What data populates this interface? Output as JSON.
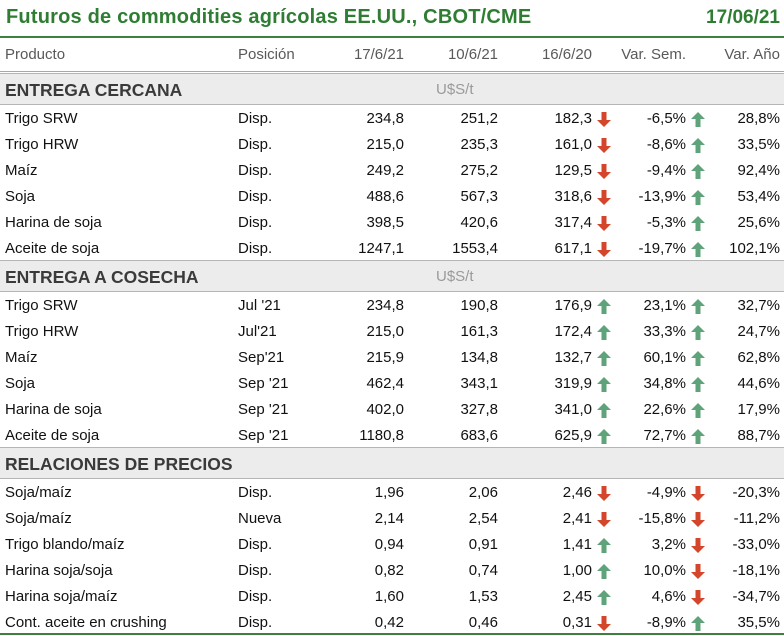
{
  "header": {
    "title": "Futuros de commodities agrícolas EE.UU., CBOT/CME",
    "date": "17/06/21"
  },
  "columns": [
    "Producto",
    "Posición",
    "17/6/21",
    "10/6/21",
    "16/6/20",
    "Var. Sem.",
    "Var. Año"
  ],
  "sections": [
    {
      "label": "ENTREGA CERCANA",
      "unit": "U$S/t",
      "rows": [
        {
          "product": "Trigo SRW",
          "position": "Disp.",
          "v1": "234,8",
          "v2": "251,2",
          "v3": "182,3",
          "week": "-6,5%",
          "year": "28,8%",
          "week_dir": "down",
          "year_dir": "up"
        },
        {
          "product": "Trigo HRW",
          "position": "Disp.",
          "v1": "215,0",
          "v2": "235,3",
          "v3": "161,0",
          "week": "-8,6%",
          "year": "33,5%",
          "week_dir": "down",
          "year_dir": "up"
        },
        {
          "product": "Maíz",
          "position": "Disp.",
          "v1": "249,2",
          "v2": "275,2",
          "v3": "129,5",
          "week": "-9,4%",
          "year": "92,4%",
          "week_dir": "down",
          "year_dir": "up"
        },
        {
          "product": "Soja",
          "position": "Disp.",
          "v1": "488,6",
          "v2": "567,3",
          "v3": "318,6",
          "week": "-13,9%",
          "year": "53,4%",
          "week_dir": "down",
          "year_dir": "up"
        },
        {
          "product": "Harina de soja",
          "position": "Disp.",
          "v1": "398,5",
          "v2": "420,6",
          "v3": "317,4",
          "week": "-5,3%",
          "year": "25,6%",
          "week_dir": "down",
          "year_dir": "up"
        },
        {
          "product": "Aceite de soja",
          "position": "Disp.",
          "v1": "1247,1",
          "v2": "1553,4",
          "v3": "617,1",
          "week": "-19,7%",
          "year": "102,1%",
          "week_dir": "down",
          "year_dir": "up"
        }
      ]
    },
    {
      "label": "ENTREGA A COSECHA",
      "unit": "U$S/t",
      "rows": [
        {
          "product": "Trigo SRW",
          "position": "Jul '21",
          "v1": "234,8",
          "v2": "190,8",
          "v3": "176,9",
          "week": "23,1%",
          "year": "32,7%",
          "week_dir": "up",
          "year_dir": "up"
        },
        {
          "product": "Trigo HRW",
          "position": "Jul'21",
          "v1": "215,0",
          "v2": "161,3",
          "v3": "172,4",
          "week": "33,3%",
          "year": "24,7%",
          "week_dir": "up",
          "year_dir": "up"
        },
        {
          "product": "Maíz",
          "position": "Sep'21",
          "v1": "215,9",
          "v2": "134,8",
          "v3": "132,7",
          "week": "60,1%",
          "year": "62,8%",
          "week_dir": "up",
          "year_dir": "up"
        },
        {
          "product": "Soja",
          "position": "Sep '21",
          "v1": "462,4",
          "v2": "343,1",
          "v3": "319,9",
          "week": "34,8%",
          "year": "44,6%",
          "week_dir": "up",
          "year_dir": "up"
        },
        {
          "product": "Harina de soja",
          "position": "Sep '21",
          "v1": "402,0",
          "v2": "327,8",
          "v3": "341,0",
          "week": "22,6%",
          "year": "17,9%",
          "week_dir": "up",
          "year_dir": "up"
        },
        {
          "product": "Aceite de soja",
          "position": "Sep '21",
          "v1": "1180,8",
          "v2": "683,6",
          "v3": "625,9",
          "week": "72,7%",
          "year": "88,7%",
          "week_dir": "up",
          "year_dir": "up"
        }
      ]
    },
    {
      "label": "RELACIONES DE PRECIOS",
      "unit": "",
      "rows": [
        {
          "product": "Soja/maíz",
          "position": "Disp.",
          "v1": "1,96",
          "v2": "2,06",
          "v3": "2,46",
          "week": "-4,9%",
          "year": "-20,3%",
          "week_dir": "down",
          "year_dir": "down"
        },
        {
          "product": "Soja/maíz",
          "position": "Nueva",
          "v1": "2,14",
          "v2": "2,54",
          "v3": "2,41",
          "week": "-15,8%",
          "year": "-11,2%",
          "week_dir": "down",
          "year_dir": "down"
        },
        {
          "product": "Trigo blando/maíz",
          "position": "Disp.",
          "v1": "0,94",
          "v2": "0,91",
          "v3": "1,41",
          "week": "3,2%",
          "year": "-33,0%",
          "week_dir": "up",
          "year_dir": "down"
        },
        {
          "product": "Harina soja/soja",
          "position": "Disp.",
          "v1": "0,82",
          "v2": "0,74",
          "v3": "1,00",
          "week": "10,0%",
          "year": "-18,1%",
          "week_dir": "up",
          "year_dir": "down"
        },
        {
          "product": "Harina soja/maíz",
          "position": "Disp.",
          "v1": "1,60",
          "v2": "1,53",
          "v3": "2,45",
          "week": "4,6%",
          "year": "-34,7%",
          "week_dir": "up",
          "year_dir": "down"
        },
        {
          "product": "Cont. aceite en crushing",
          "position": "Disp.",
          "v1": "0,42",
          "v2": "0,46",
          "v3": "0,31",
          "week": "-8,9%",
          "year": "35,5%",
          "week_dir": "down",
          "year_dir": "up"
        }
      ]
    }
  ],
  "colors": {
    "title": "#2e7d32",
    "arrow_up": "#5fa37a",
    "arrow_down": "#d4462b",
    "section_bg": "#ececec"
  },
  "icons": {
    "up": "arrow-up-icon",
    "down": "arrow-down-icon"
  }
}
